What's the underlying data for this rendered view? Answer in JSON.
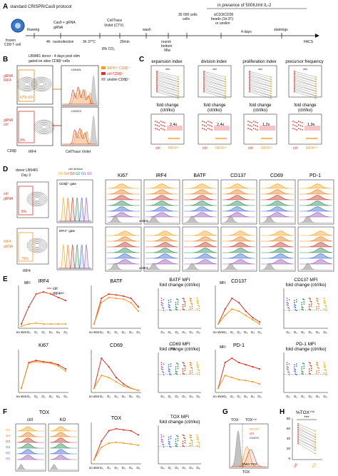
{
  "colors": {
    "ctrl": "#d9342b",
    "ko": "#f39c24",
    "unstim": "#8a8a8a",
    "g5": "#f5a623",
    "g4": "#e8801f",
    "g3": "#c0392b",
    "g2": "#2e8b57",
    "g1": "#3b6bd6",
    "g0": "#9b59b6"
  },
  "panelA": {
    "label": "A",
    "protocol": "standard CRISPR/Cas9 protocol",
    "cell": "frozen CD8 T cell",
    "steps": [
      "thawing",
      "Cas9 + gRNA",
      "nucleofection",
      "3h 37°C",
      "CellTrace Violet (CTV)",
      "20min",
      "wash",
      "round-bottom 96w",
      "30 000 cells",
      "αCD3/CD28 beads (1b:3T) or unstim",
      "stainings",
      "FACS"
    ],
    "times": [
      "4h",
      "4 days"
    ],
    "co2": "8% CO₂",
    "il2": "in presence of 500IU/ml IL-2"
  },
  "panelB": {
    "label": "B",
    "header": "LB9481 donor - 4 days post stim",
    "gate": "gated on alive CD8β⁺cells",
    "rows": [
      "gRNA IRF4",
      "gRNA ctrl"
    ],
    "ko_pct": "67% KO",
    "ctrl_pct": "3%",
    "donors": [
      "LB9481",
      "LB3329"
    ],
    "legend": [
      "ctrl CD8β⁺",
      "IRF4ᴷᴼ CD8β⁺",
      "unstim CD8β⁺"
    ],
    "xaxis": [
      "IRF4",
      "CellTrace Violet"
    ],
    "yaxis": "CD8β"
  },
  "panelC": {
    "label": "C",
    "titles": [
      "expansion index",
      "division index",
      "proliferation index",
      "precursor frequency"
    ],
    "sig": [
      "***",
      "***",
      "***",
      "***"
    ],
    "fc_title": "fold change (ctrl/ko)",
    "fc_values": [
      "2,4x",
      "2,4x",
      "1,2x",
      "1,9x"
    ],
    "groups": [
      "ctrl",
      "IRF4ᴷᴼ"
    ]
  },
  "panelD": {
    "label": "D",
    "donor": "donor LB9481 Day 3",
    "division": "cell division",
    "gens": [
      "G5",
      "G4",
      "G3",
      "G2",
      "G1",
      "G0"
    ],
    "gates": [
      "CD8β⁺ gate",
      "IRF4⁺ gate"
    ],
    "markers": [
      "Ki67",
      "IRF4",
      "BATF",
      "CD137",
      "CD69",
      "PD-1"
    ],
    "rows": [
      "ctrl gRNA",
      "IRF4 gRNA"
    ],
    "pcts": [
      "8%",
      "75%"
    ],
    "unstim": "unstim",
    "xaxis": "IRF4"
  },
  "panelE": {
    "label": "E",
    "legend": [
      "ctrl",
      "IRF4ᴷᴼ"
    ],
    "titles": [
      "IRF4",
      "BATF",
      "BATF MFI fold change (ctrl/ko)",
      "CD137",
      "CD137 MFI fold change (ctrl/ko)",
      "Ki67",
      "CD69",
      "CD69 MFI fold change (ctrl/ko)",
      "PD-1",
      "PD-1 MFI fold change (ctrl/ko)"
    ],
    "xcats": [
      "no stim",
      "G₀",
      "G₁",
      "G₂",
      "G₃",
      "G₄",
      "G₅"
    ],
    "gcats": [
      "G₀",
      "G₁",
      "G₂",
      "G₃",
      "G₄",
      "G₅"
    ],
    "ylabel": "MFI",
    "ns": "ns",
    "stars": [
      "****",
      "***",
      "**",
      "*"
    ]
  },
  "panelF": {
    "label": "F",
    "cols": [
      "ctrl",
      "KO"
    ],
    "title": "TOX",
    "mfi_title": "TOX",
    "fc_title": "TOX MFI fold change (ctrl/ko)",
    "gens": [
      "G5",
      "G4",
      "G3",
      "G2",
      "G1",
      "G0"
    ],
    "unstim": "unstim",
    "ylabel": "MFI"
  },
  "panelG": {
    "label": "G",
    "gates": [
      "TOX⁻",
      "TOX⁺ʰⁱ"
    ],
    "legend": [
      "IRF4ᴷᴼ",
      "ctrl",
      "unstim"
    ],
    "fmo": "FMO TOX",
    "xaxis": "TOX"
  },
  "panelH": {
    "label": "H",
    "title": "%TOX⁺ʰⁱ",
    "sig": "***",
    "groups": [
      "ctrl",
      "KO"
    ],
    "yticks": [
      "0",
      "20",
      "40",
      "60",
      "80"
    ]
  }
}
